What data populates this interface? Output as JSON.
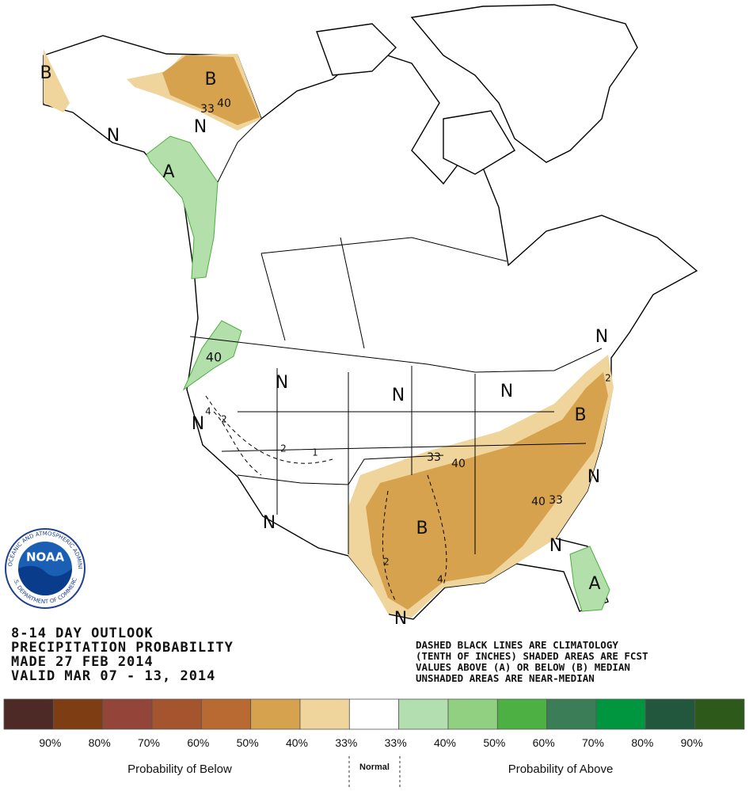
{
  "map_labels": [
    "B",
    "B",
    "33",
    "40",
    "N",
    "N",
    "A",
    "40",
    "N",
    "N",
    "N",
    "N",
    "N",
    "B",
    "33",
    "40",
    "N",
    "40",
    "33",
    "B",
    "N",
    "N",
    "A",
    "N",
    "2",
    "2",
    "4",
    "2",
    "1",
    "2",
    "4"
  ],
  "logo": {
    "agency": "NATIONAL OCEANIC AND ATMOSPHERIC ADMINISTRATION",
    "department": "U.S. DEPARTMENT OF COMMERCE",
    "name": "NOAA"
  },
  "header": {
    "lines": [
      "8-14 DAY OUTLOOK",
      "PRECIPITATION PROBABILITY",
      "MADE  27 FEB 2014",
      "VALID  MAR 07 - 13, 2014"
    ]
  },
  "notes": [
    "DASHED BLACK LINES ARE CLIMATOLOGY",
    "(TENTH OF INCHES) SHADED AREAS ARE FCST",
    "VALUES ABOVE (A) OR BELOW (B) MEDIAN",
    "UNSHADED AREAS ARE NEAR-MEDIAN"
  ],
  "legend": {
    "swatch_colors": [
      "#4e2a27",
      "#7f3d13",
      "#93453a",
      "#a4552e",
      "#b96a33",
      "#d7a24e",
      "#efd49b",
      "#ffffff",
      "#b3deb0",
      "#90d080",
      "#4cb043",
      "#3a7d56",
      "#009640",
      "#23573d",
      "#2d5a1b"
    ],
    "tick_labels": [
      "90%",
      "80%",
      "70%",
      "60%",
      "50%",
      "40%",
      "33%",
      "33%",
      "40%",
      "50%",
      "60%",
      "70%",
      "80%",
      "90%"
    ],
    "below_label": "Probability of Below",
    "normal_label": "Normal",
    "above_label": "Probability of Above"
  }
}
